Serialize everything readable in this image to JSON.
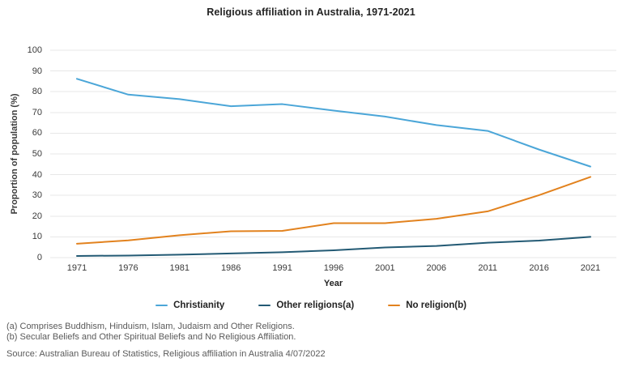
{
  "title": "Religious affiliation in Australia, 1971-2021",
  "chart_data": {
    "type": "line",
    "x": [
      1971,
      1976,
      1981,
      1986,
      1991,
      1996,
      2001,
      2006,
      2011,
      2016,
      2021
    ],
    "xlabel": "Year",
    "ylabel": "Proportion of population (%)",
    "ylim": [
      0,
      100
    ],
    "ytick_step": 10,
    "grid": "horizontal-light-gray",
    "legend_position": "bottom-center",
    "series": [
      {
        "name": "Christianity",
        "color": "#4ba6d8",
        "values": [
          86.2,
          78.6,
          76.4,
          73.0,
          74.0,
          70.9,
          68.0,
          63.9,
          61.1,
          52.1,
          43.9
        ]
      },
      {
        "name": "Other religions(a)",
        "color": "#235a74",
        "values": [
          0.8,
          1.0,
          1.4,
          2.0,
          2.6,
          3.5,
          4.9,
          5.6,
          7.2,
          8.2,
          10.0
        ]
      },
      {
        "name": "No religion(b)",
        "color": "#e2821e",
        "values": [
          6.7,
          8.3,
          10.8,
          12.7,
          12.9,
          16.6,
          16.6,
          18.7,
          22.3,
          30.1,
          38.9
        ]
      }
    ],
    "gridline_color": "#e7e7e7"
  },
  "footnotes": [
    "(a) Comprises Buddhism, Hinduism, Islam, Judaism and Other Religions.",
    "(b) Secular Beliefs and Other Spiritual Beliefs and No Religious Affiliation."
  ],
  "source": "Source: Australian Bureau of Statistics, Religious affiliation in Australia 4/07/2022"
}
